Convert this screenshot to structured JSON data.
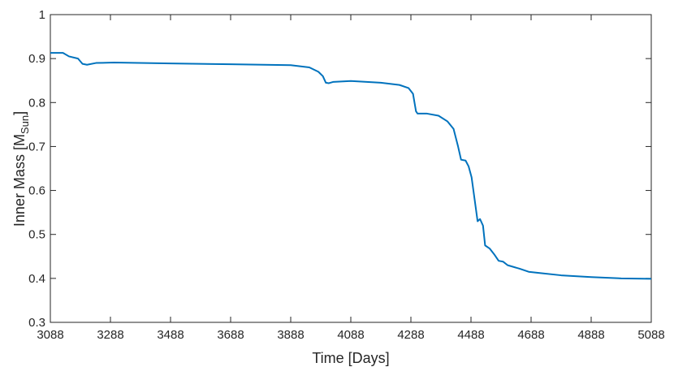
{
  "chart_data": {
    "type": "line",
    "xlabel": "Time [Days]",
    "ylabel": {
      "main": "Inner Mass [M",
      "subscript": "Sun",
      "close": "]"
    },
    "x": [
      3088,
      3130,
      3150,
      3180,
      3195,
      3210,
      3240,
      3300,
      3488,
      3688,
      3888,
      3950,
      3980,
      3995,
      4005,
      4015,
      4030,
      4088,
      4188,
      4250,
      4280,
      4295,
      4305,
      4310,
      4340,
      4380,
      4410,
      4430,
      4445,
      4455,
      4470,
      4480,
      4490,
      4500,
      4510,
      4518,
      4528,
      4535,
      4550,
      4565,
      4580,
      4595,
      4610,
      4650,
      4680,
      4720,
      4788,
      4888,
      4988,
      5088
    ],
    "series": [
      {
        "color": "#0072bd",
        "values": [
          0.913,
          0.913,
          0.905,
          0.9,
          0.888,
          0.886,
          0.89,
          0.891,
          0.889,
          0.887,
          0.885,
          0.88,
          0.87,
          0.86,
          0.845,
          0.844,
          0.847,
          0.849,
          0.845,
          0.84,
          0.833,
          0.82,
          0.78,
          0.775,
          0.775,
          0.77,
          0.757,
          0.74,
          0.7,
          0.67,
          0.668,
          0.655,
          0.63,
          0.58,
          0.53,
          0.535,
          0.52,
          0.475,
          0.468,
          0.455,
          0.44,
          0.438,
          0.43,
          0.422,
          0.415,
          0.412,
          0.407,
          0.403,
          0.4,
          0.399
        ]
      }
    ],
    "xlim": [
      3088,
      5088
    ],
    "xticks": [
      3088,
      3288,
      3488,
      3688,
      3888,
      4088,
      4288,
      4488,
      4688,
      4888,
      5088
    ],
    "ylim": [
      0.3,
      1
    ],
    "yticks": [
      0.3,
      0.4,
      0.5,
      0.6,
      0.7,
      0.8,
      0.9,
      1
    ],
    "grid": false
  }
}
